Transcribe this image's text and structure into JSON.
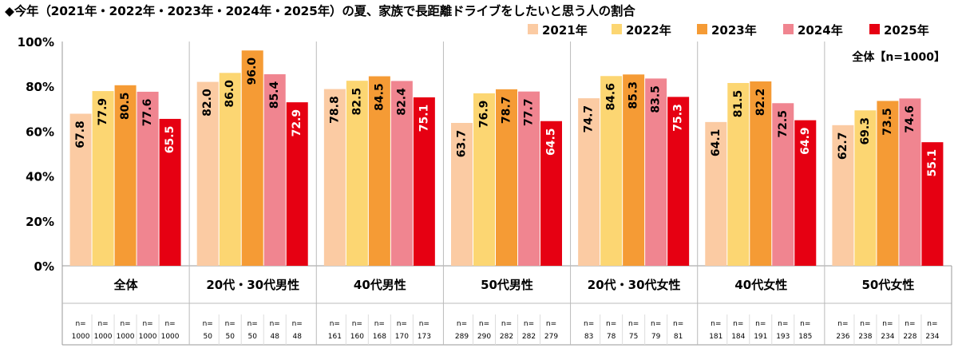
{
  "chart_data": {
    "type": "bar",
    "title": "◆今年（2021年・2022年・2023年・2024年・2025年）の夏、家族で長距離ドライブをしたいと思う人の割合",
    "note": "全体【n=1000】",
    "ylim": [
      0,
      100
    ],
    "yticks": [
      "0%",
      "20%",
      "40%",
      "60%",
      "80%",
      "100%"
    ],
    "categories": [
      "全体",
      "20代・30代男性",
      "40代男性",
      "50代男性",
      "20代・30代女性",
      "40代女性",
      "50代女性"
    ],
    "series": [
      {
        "name": "2021年",
        "color": "#FBCBA3",
        "label_color": "#000000",
        "values": [
          67.8,
          82.0,
          78.8,
          63.7,
          74.7,
          64.1,
          62.7
        ],
        "n": [
          "1000",
          "50",
          "161",
          "289",
          "83",
          "181",
          "236"
        ]
      },
      {
        "name": "2022年",
        "color": "#FCD672",
        "label_color": "#000000",
        "values": [
          77.9,
          86.0,
          82.5,
          76.9,
          84.6,
          81.5,
          69.3
        ],
        "n": [
          "1000",
          "50",
          "160",
          "290",
          "78",
          "184",
          "238"
        ]
      },
      {
        "name": "2023年",
        "color": "#F59B35",
        "label_color": "#000000",
        "values": [
          80.5,
          96.0,
          84.5,
          78.7,
          85.3,
          82.2,
          73.5
        ],
        "n": [
          "1000",
          "50",
          "168",
          "282",
          "75",
          "191",
          "234"
        ]
      },
      {
        "name": "2024年",
        "color": "#F08590",
        "label_color": "#000000",
        "values": [
          77.6,
          85.4,
          82.4,
          77.7,
          83.5,
          72.5,
          74.6
        ],
        "n": [
          "1000",
          "48",
          "170",
          "282",
          "79",
          "193",
          "228"
        ]
      },
      {
        "name": "2025年",
        "color": "#E60012",
        "label_color": "#FFFFFF",
        "values": [
          65.5,
          72.9,
          75.1,
          64.5,
          75.3,
          64.9,
          55.1
        ],
        "n": [
          "1000",
          "48",
          "173",
          "279",
          "81",
          "185",
          "234"
        ]
      }
    ],
    "n_prefix": "n=",
    "legend_position": "top-right",
    "grid": false
  }
}
